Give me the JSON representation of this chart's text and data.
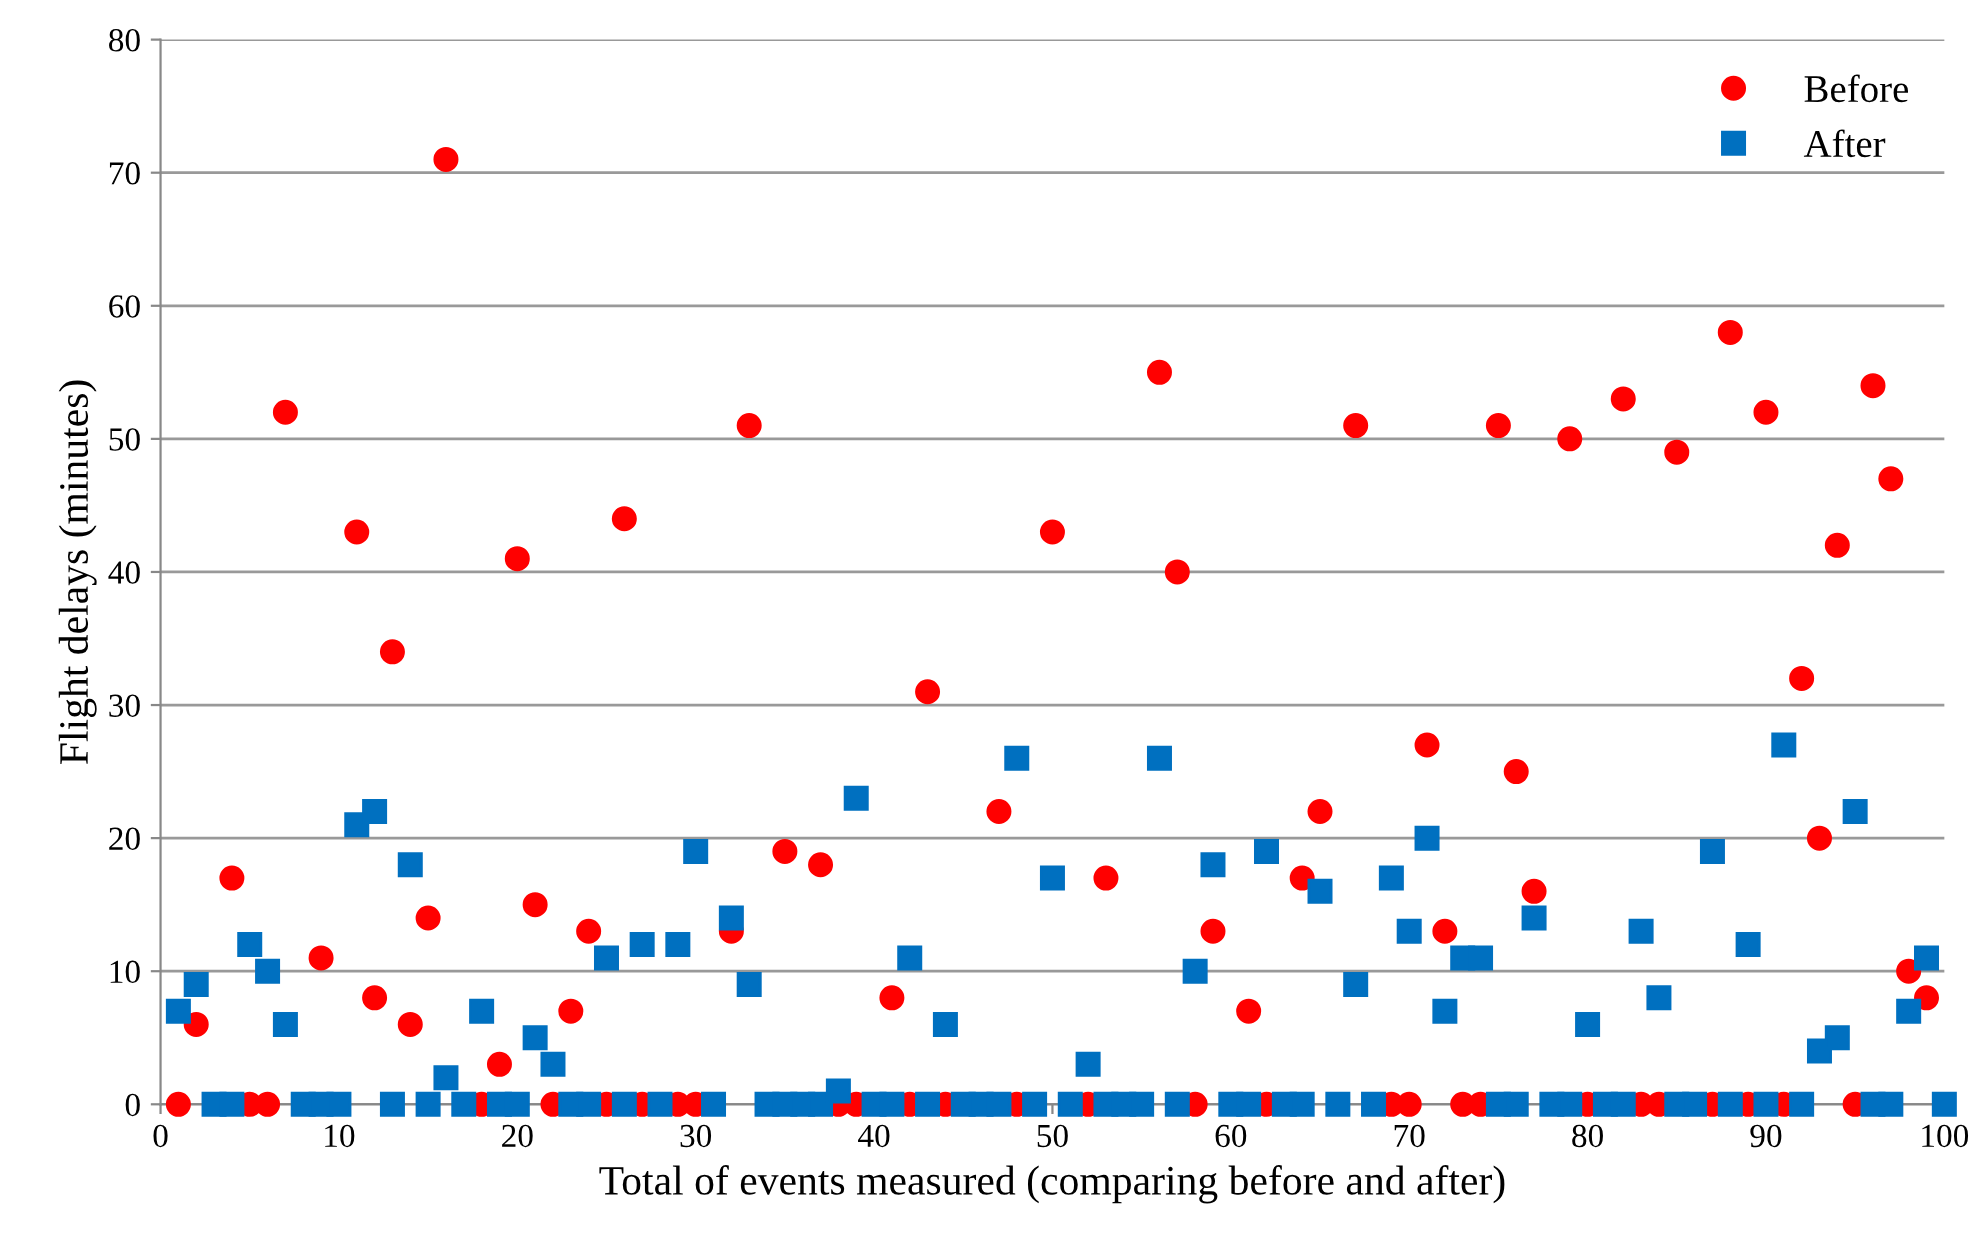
{
  "chart_data": {
    "type": "scatter",
    "xlabel": "Total of events measured (comparing before and after)",
    "ylabel": "Flight delays (minutes)",
    "x": [
      1,
      2,
      3,
      4,
      5,
      6,
      7,
      8,
      9,
      10,
      11,
      12,
      13,
      14,
      15,
      16,
      17,
      18,
      19,
      20,
      21,
      22,
      23,
      24,
      25,
      26,
      27,
      28,
      29,
      30,
      31,
      32,
      33,
      34,
      35,
      36,
      37,
      38,
      39,
      40,
      41,
      42,
      43,
      44,
      45,
      46,
      47,
      48,
      49,
      50,
      51,
      52,
      53,
      54,
      55,
      56,
      57,
      58,
      59,
      60,
      61,
      62,
      63,
      64,
      65,
      66,
      67,
      68,
      69,
      70,
      71,
      72,
      73,
      74,
      75,
      76,
      77,
      78,
      79,
      80,
      81,
      82,
      83,
      84,
      85,
      86,
      87,
      88,
      89,
      90,
      91,
      92,
      93,
      94,
      95,
      96,
      97,
      98,
      99,
      100
    ],
    "series": [
      {
        "name": "Before",
        "color": "#ff0000",
        "marker": "circle",
        "values": [
          0,
          6,
          null,
          17,
          0,
          0,
          52,
          null,
          11,
          null,
          43,
          8,
          34,
          6,
          14,
          71,
          null,
          0,
          3,
          41,
          15,
          0,
          7,
          13,
          0,
          44,
          0,
          null,
          0,
          0,
          null,
          13,
          51,
          null,
          19,
          null,
          18,
          0,
          0,
          null,
          8,
          0,
          31,
          0,
          null,
          null,
          22,
          0,
          null,
          43,
          null,
          0,
          17,
          null,
          null,
          55,
          40,
          0,
          13,
          null,
          7,
          0,
          null,
          17,
          22,
          null,
          51,
          null,
          0,
          0,
          27,
          13,
          0,
          0,
          51,
          25,
          16,
          null,
          50,
          0,
          null,
          53,
          0,
          0,
          49,
          null,
          0,
          58,
          0,
          52,
          0,
          32,
          20,
          42,
          0,
          54,
          47,
          10,
          8,
          null
        ]
      },
      {
        "name": "After",
        "color": "#0070c0",
        "marker": "square",
        "values": [
          7,
          9,
          0,
          0,
          12,
          10,
          6,
          0,
          0,
          0,
          21,
          22,
          0,
          18,
          0,
          2,
          0,
          7,
          0,
          0,
          5,
          3,
          0,
          0,
          11,
          0,
          12,
          0,
          12,
          19,
          0,
          14,
          9,
          0,
          0,
          0,
          0,
          1,
          23,
          0,
          0,
          11,
          0,
          6,
          0,
          0,
          0,
          26,
          0,
          17,
          0,
          3,
          0,
          0,
          0,
          26,
          0,
          10,
          18,
          0,
          0,
          19,
          0,
          0,
          16,
          0,
          9,
          0,
          17,
          13,
          20,
          7,
          11,
          11,
          0,
          0,
          14,
          0,
          0,
          6,
          0,
          0,
          13,
          8,
          0,
          0,
          19,
          0,
          12,
          0,
          27,
          0,
          4,
          5,
          22,
          0,
          0,
          7,
          11,
          0
        ]
      }
    ],
    "xlim": [
      0,
      100
    ],
    "xticks": [
      0,
      10,
      20,
      30,
      40,
      50,
      60,
      70,
      80,
      90,
      100
    ],
    "ylim": [
      0,
      80
    ],
    "yticks": [
      0,
      10,
      20,
      30,
      40,
      50,
      60,
      70,
      80
    ],
    "grid": "y",
    "legend": "top right"
  }
}
